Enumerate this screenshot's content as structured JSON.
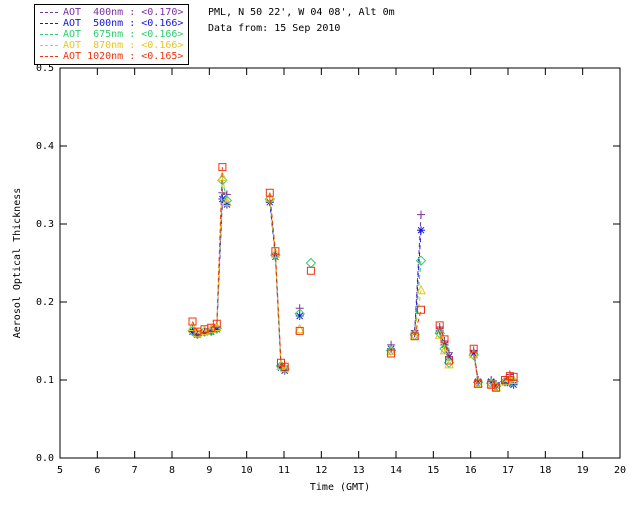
{
  "header": {
    "location_line": "PML, N 50 22', W 04 08', Alt 0m",
    "date_line": "Data from: 15 Sep 2010"
  },
  "chart_data": {
    "type": "scatter",
    "title": "",
    "xlabel": "Time (GMT)",
    "ylabel": "Aerosol Optical Thickness",
    "xlim": [
      5,
      20
    ],
    "ylim": [
      0.0,
      0.5
    ],
    "xticks": [
      5,
      6,
      7,
      8,
      9,
      10,
      11,
      12,
      13,
      14,
      15,
      16,
      17,
      18,
      19,
      20
    ],
    "yticks": [
      0.0,
      0.1,
      0.2,
      0.3,
      0.4,
      0.5
    ],
    "grid": false,
    "legend_position": "top-left-outside",
    "line_style": "dashed",
    "gap_threshold_hours": 0.28,
    "series": [
      {
        "name": "400nm",
        "legend_label": "AOT  400nm : <0.170>",
        "mean_aot": "<0.170>",
        "color": "#7a30a0",
        "marker": "plus",
        "points": [
          [
            8.55,
            0.165
          ],
          [
            8.68,
            0.16
          ],
          [
            8.87,
            0.163
          ],
          [
            9.05,
            0.164
          ],
          [
            9.2,
            0.168
          ],
          [
            9.35,
            0.34
          ],
          [
            9.47,
            0.338
          ],
          [
            10.62,
            0.33
          ],
          [
            10.77,
            0.262
          ],
          [
            10.92,
            0.12
          ],
          [
            11.02,
            0.118
          ],
          [
            11.42,
            0.192
          ],
          [
            13.87,
            0.145
          ],
          [
            14.5,
            0.163
          ],
          [
            14.67,
            0.312
          ],
          [
            15.17,
            0.168
          ],
          [
            15.3,
            0.15
          ],
          [
            15.42,
            0.135
          ],
          [
            16.08,
            0.138
          ],
          [
            16.2,
            0.1
          ],
          [
            16.55,
            0.1
          ],
          [
            16.68,
            0.095
          ],
          [
            16.92,
            0.1
          ],
          [
            17.05,
            0.107
          ],
          [
            17.15,
            0.1
          ]
        ]
      },
      {
        "name": "500nm",
        "legend_label": "AOT  500nm : <0.166>",
        "mean_aot": "<0.166>",
        "color": "#1515e0",
        "marker": "asterisk",
        "points": [
          [
            8.55,
            0.162
          ],
          [
            8.68,
            0.158
          ],
          [
            8.87,
            0.161
          ],
          [
            9.05,
            0.162
          ],
          [
            9.2,
            0.165
          ],
          [
            9.35,
            0.332
          ],
          [
            9.47,
            0.325
          ],
          [
            10.62,
            0.328
          ],
          [
            10.77,
            0.258
          ],
          [
            10.92,
            0.116
          ],
          [
            11.02,
            0.112
          ],
          [
            11.42,
            0.182
          ],
          [
            13.87,
            0.14
          ],
          [
            14.5,
            0.16
          ],
          [
            14.67,
            0.292
          ],
          [
            15.17,
            0.163
          ],
          [
            15.3,
            0.145
          ],
          [
            15.42,
            0.13
          ],
          [
            16.08,
            0.134
          ],
          [
            16.2,
            0.098
          ],
          [
            16.55,
            0.098
          ],
          [
            16.68,
            0.093
          ],
          [
            16.92,
            0.097
          ],
          [
            17.05,
            0.096
          ],
          [
            17.15,
            0.094
          ]
        ]
      },
      {
        "name": "675nm",
        "legend_label": "AOT  675nm : <0.166>",
        "mean_aot": "<0.166>",
        "color": "#2ecc71",
        "marker": "diamond",
        "points": [
          [
            8.55,
            0.163
          ],
          [
            8.68,
            0.159
          ],
          [
            8.87,
            0.162
          ],
          [
            9.05,
            0.163
          ],
          [
            9.2,
            0.166
          ],
          [
            9.35,
            0.356
          ],
          [
            9.47,
            0.33
          ],
          [
            10.62,
            0.332
          ],
          [
            10.77,
            0.26
          ],
          [
            10.92,
            0.118
          ],
          [
            11.02,
            0.114
          ],
          [
            11.42,
            0.185
          ],
          [
            11.72,
            0.25
          ],
          [
            13.87,
            0.138
          ],
          [
            14.5,
            0.158
          ],
          [
            14.67,
            0.253
          ],
          [
            15.17,
            0.16
          ],
          [
            15.3,
            0.14
          ],
          [
            15.42,
            0.122
          ],
          [
            16.08,
            0.132
          ],
          [
            16.2,
            0.097
          ],
          [
            16.55,
            0.096
          ],
          [
            16.68,
            0.092
          ],
          [
            16.92,
            0.098
          ],
          [
            17.05,
            0.1
          ],
          [
            17.15,
            0.098
          ]
        ]
      },
      {
        "name": "870nm",
        "legend_label": "AOT  870nm : <0.166>",
        "mean_aot": "<0.166>",
        "color": "#e8c51c",
        "marker": "triangle",
        "points": [
          [
            8.55,
            0.168
          ],
          [
            8.68,
            0.16
          ],
          [
            8.87,
            0.163
          ],
          [
            9.05,
            0.165
          ],
          [
            9.2,
            0.168
          ],
          [
            9.35,
            0.36
          ],
          [
            9.47,
            0.328
          ],
          [
            10.62,
            0.334
          ],
          [
            10.77,
            0.262
          ],
          [
            10.92,
            0.118
          ],
          [
            11.02,
            0.115
          ],
          [
            11.42,
            0.165
          ],
          [
            13.87,
            0.137
          ],
          [
            14.5,
            0.157
          ],
          [
            14.67,
            0.215
          ],
          [
            15.17,
            0.158
          ],
          [
            15.3,
            0.138
          ],
          [
            15.42,
            0.12
          ],
          [
            16.08,
            0.133
          ],
          [
            16.2,
            0.096
          ],
          [
            16.55,
            0.095
          ],
          [
            16.68,
            0.091
          ],
          [
            16.92,
            0.099
          ],
          [
            17.05,
            0.102
          ],
          [
            17.15,
            0.1
          ]
        ]
      },
      {
        "name": "1020nm",
        "legend_label": "AOT 1020nm : <0.165>",
        "mean_aot": "<0.165>",
        "color": "#ee3311",
        "marker": "square",
        "points": [
          [
            8.55,
            0.175
          ],
          [
            8.68,
            0.162
          ],
          [
            8.87,
            0.165
          ],
          [
            9.05,
            0.167
          ],
          [
            9.2,
            0.172
          ],
          [
            9.35,
            0.373
          ],
          [
            10.62,
            0.34
          ],
          [
            10.77,
            0.265
          ],
          [
            10.92,
            0.122
          ],
          [
            11.02,
            0.117
          ],
          [
            11.42,
            0.163
          ],
          [
            11.72,
            0.24
          ],
          [
            13.87,
            0.134
          ],
          [
            14.5,
            0.156
          ],
          [
            14.67,
            0.19
          ],
          [
            15.17,
            0.17
          ],
          [
            15.3,
            0.152
          ],
          [
            15.42,
            0.125
          ],
          [
            16.08,
            0.14
          ],
          [
            16.2,
            0.095
          ],
          [
            16.55,
            0.094
          ],
          [
            16.68,
            0.09
          ],
          [
            16.92,
            0.1
          ],
          [
            17.05,
            0.105
          ],
          [
            17.15,
            0.104
          ]
        ]
      }
    ]
  }
}
